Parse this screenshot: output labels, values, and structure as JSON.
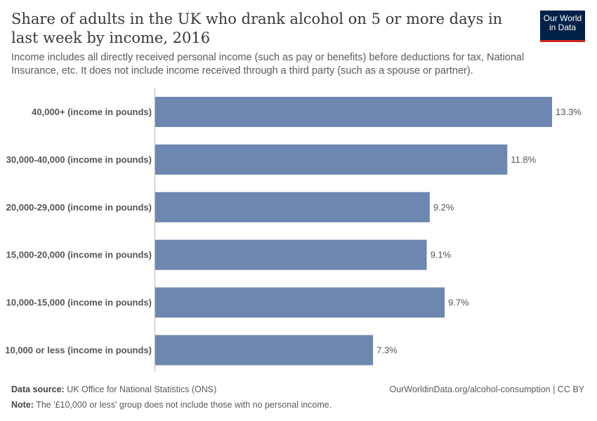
{
  "header": {
    "title": "Share of adults in the UK who drank alcohol on 5 or more days in last week by income, 2016",
    "subtitle": "Income includes all directly received personal income (such as pay or benefits) before deductions for tax, National Insurance, etc. It does not include income received through a third party (such as a spouse or partner).",
    "logo": {
      "line1": "Our World",
      "line2": "in Data"
    }
  },
  "chart_data": {
    "type": "bar",
    "orientation": "horizontal",
    "categories": [
      "40,000+ (income in pounds)",
      "30,000-40,000 (income in pounds)",
      "20,000-29,000 (income in pounds)",
      "15,000-20,000 (income in pounds)",
      "10,000-15,000 (income in pounds)",
      "10,000 or less (income in pounds)"
    ],
    "values": [
      13.3,
      11.8,
      9.2,
      9.1,
      9.7,
      7.3
    ],
    "value_labels": [
      "13.3%",
      "11.8%",
      "9.2%",
      "9.1%",
      "9.7%",
      "7.3%"
    ],
    "unit": "%",
    "bar_color": "#6d87b1",
    "xlim": [
      0,
      13.3
    ],
    "grid": false
  },
  "footer": {
    "source_label": "Data source:",
    "source": "UK Office for National Statistics (ONS)",
    "url": "OurWorldinData.org/alcohol-consumption | CC BY",
    "note_label": "Note:",
    "note": "The '£10,000 or less' group does not include those with no personal income."
  }
}
